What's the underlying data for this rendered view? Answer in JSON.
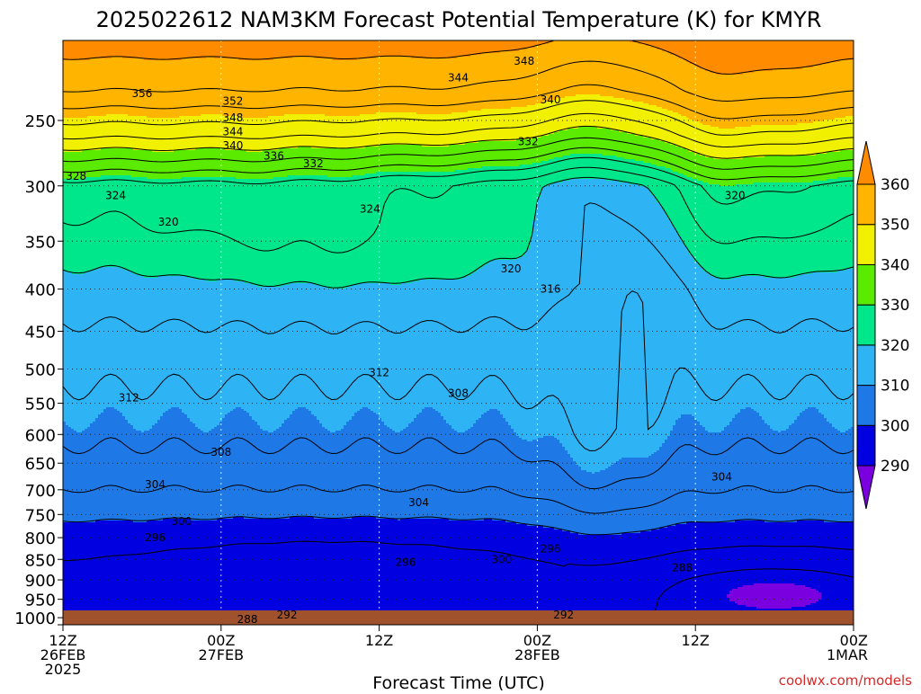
{
  "chart_data": {
    "type": "contour",
    "title": "2025022612 NAM3KM Forecast Potential Temperature (K) for KMYR",
    "xlabel": "Forecast Time (UTC)",
    "ylabel": "",
    "credit": "coolwx.com/models",
    "x_range_hours": [
      0,
      60
    ],
    "x_ticks": [
      {
        "hour": 0,
        "lines": [
          "12Z",
          "26FEB",
          "2025"
        ]
      },
      {
        "hour": 12,
        "lines": [
          "00Z",
          "27FEB"
        ]
      },
      {
        "hour": 24,
        "lines": [
          "12Z"
        ]
      },
      {
        "hour": 36,
        "lines": [
          "00Z",
          "28FEB"
        ]
      },
      {
        "hour": 48,
        "lines": [
          "12Z"
        ]
      },
      {
        "hour": 60,
        "lines": [
          "00Z",
          "1MAR"
        ]
      }
    ],
    "y_axis": {
      "unit": "hPa",
      "scale": "log-pressure",
      "range": [
        1020,
        200
      ],
      "ticks": [
        250,
        300,
        350,
        400,
        450,
        500,
        550,
        600,
        650,
        700,
        750,
        800,
        850,
        900,
        950,
        1000
      ]
    },
    "grid": "dotted",
    "colorbar": {
      "placement": "right",
      "levels": [
        290,
        300,
        310,
        320,
        330,
        340,
        350,
        360
      ],
      "colors": [
        "#7a00e0",
        "#0000e0",
        "#1e78e6",
        "#2eb4f5",
        "#00e68a",
        "#5aeb00",
        "#f0f000",
        "#ffb400",
        "#ff8c00"
      ]
    },
    "contour_interval_K": 4,
    "surface_color": "#a0522d",
    "contour_labels": [
      {
        "value": "356",
        "hour": 6.0,
        "pres": 232
      },
      {
        "value": "352",
        "hour": 12.9,
        "pres": 237
      },
      {
        "value": "348",
        "hour": 12.9,
        "pres": 248
      },
      {
        "value": "344",
        "hour": 12.9,
        "pres": 258
      },
      {
        "value": "340",
        "hour": 12.9,
        "pres": 268
      },
      {
        "value": "336",
        "hour": 16.0,
        "pres": 276
      },
      {
        "value": "332",
        "hour": 19.0,
        "pres": 282
      },
      {
        "value": "328",
        "hour": 1.0,
        "pres": 292
      },
      {
        "value": "324",
        "hour": 4.0,
        "pres": 308
      },
      {
        "value": "320",
        "hour": 8.0,
        "pres": 332
      },
      {
        "value": "324",
        "hour": 23.3,
        "pres": 320
      },
      {
        "value": "348",
        "hour": 35.0,
        "pres": 212
      },
      {
        "value": "344",
        "hour": 30.0,
        "pres": 222
      },
      {
        "value": "340",
        "hour": 37.0,
        "pres": 236
      },
      {
        "value": "332",
        "hour": 35.3,
        "pres": 265
      },
      {
        "value": "320",
        "hour": 51.0,
        "pres": 308
      },
      {
        "value": "320",
        "hour": 34.0,
        "pres": 378
      },
      {
        "value": "316",
        "hour": 37.0,
        "pres": 400
      },
      {
        "value": "312",
        "hour": 24.0,
        "pres": 505
      },
      {
        "value": "308",
        "hour": 30.0,
        "pres": 535
      },
      {
        "value": "312",
        "hour": 5.0,
        "pres": 542
      },
      {
        "value": "308",
        "hour": 12.0,
        "pres": 630
      },
      {
        "value": "304",
        "hour": 7.0,
        "pres": 690
      },
      {
        "value": "304",
        "hour": 27.0,
        "pres": 725
      },
      {
        "value": "304",
        "hour": 50.0,
        "pres": 675
      },
      {
        "value": "300",
        "hour": 9.0,
        "pres": 765
      },
      {
        "value": "296",
        "hour": 7.0,
        "pres": 800
      },
      {
        "value": "296",
        "hour": 26.0,
        "pres": 857
      },
      {
        "value": "300",
        "hour": 33.3,
        "pres": 850
      },
      {
        "value": "296",
        "hour": 37.0,
        "pres": 825
      },
      {
        "value": "288",
        "hour": 47.0,
        "pres": 870
      },
      {
        "value": "292",
        "hour": 38.0,
        "pres": 992
      },
      {
        "value": "292",
        "hour": 17.0,
        "pres": 992
      },
      {
        "value": "288",
        "hour": 14.0,
        "pres": 1005
      }
    ]
  }
}
